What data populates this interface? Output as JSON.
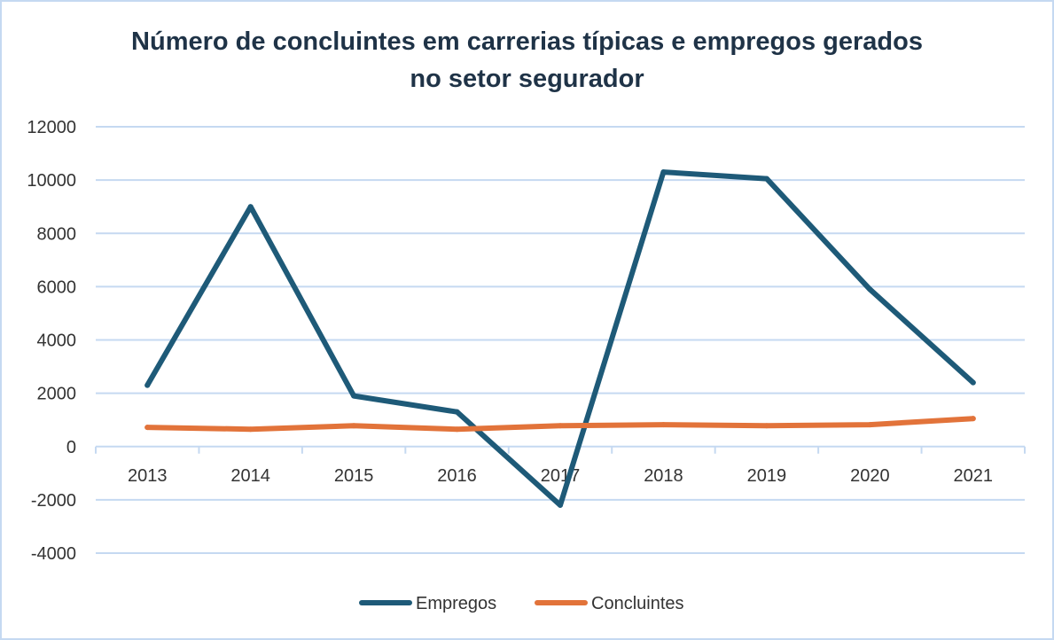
{
  "chart_data": {
    "type": "line",
    "title_line1": "Número de concluintes em carrerias típicas e empregos gerados",
    "title_line2": "no setor segurador",
    "categories": [
      "2013",
      "2014",
      "2015",
      "2016",
      "2017",
      "2018",
      "2019",
      "2020",
      "2021"
    ],
    "ylim": [
      -4000,
      12000
    ],
    "yticks": [
      "12000",
      "10000",
      "8000",
      "6000",
      "4000",
      "2000",
      "0",
      "-2000",
      "-4000"
    ],
    "grid": true,
    "legend_position": "bottom",
    "series": [
      {
        "name": "Empregos",
        "color": "#1e5a78",
        "values": [
          2300,
          9000,
          1900,
          1300,
          -2200,
          10300,
          10050,
          5900,
          2400
        ]
      },
      {
        "name": "Concluintes",
        "color": "#e2733a",
        "values": [
          720,
          650,
          780,
          650,
          780,
          820,
          780,
          820,
          1050
        ]
      }
    ]
  }
}
